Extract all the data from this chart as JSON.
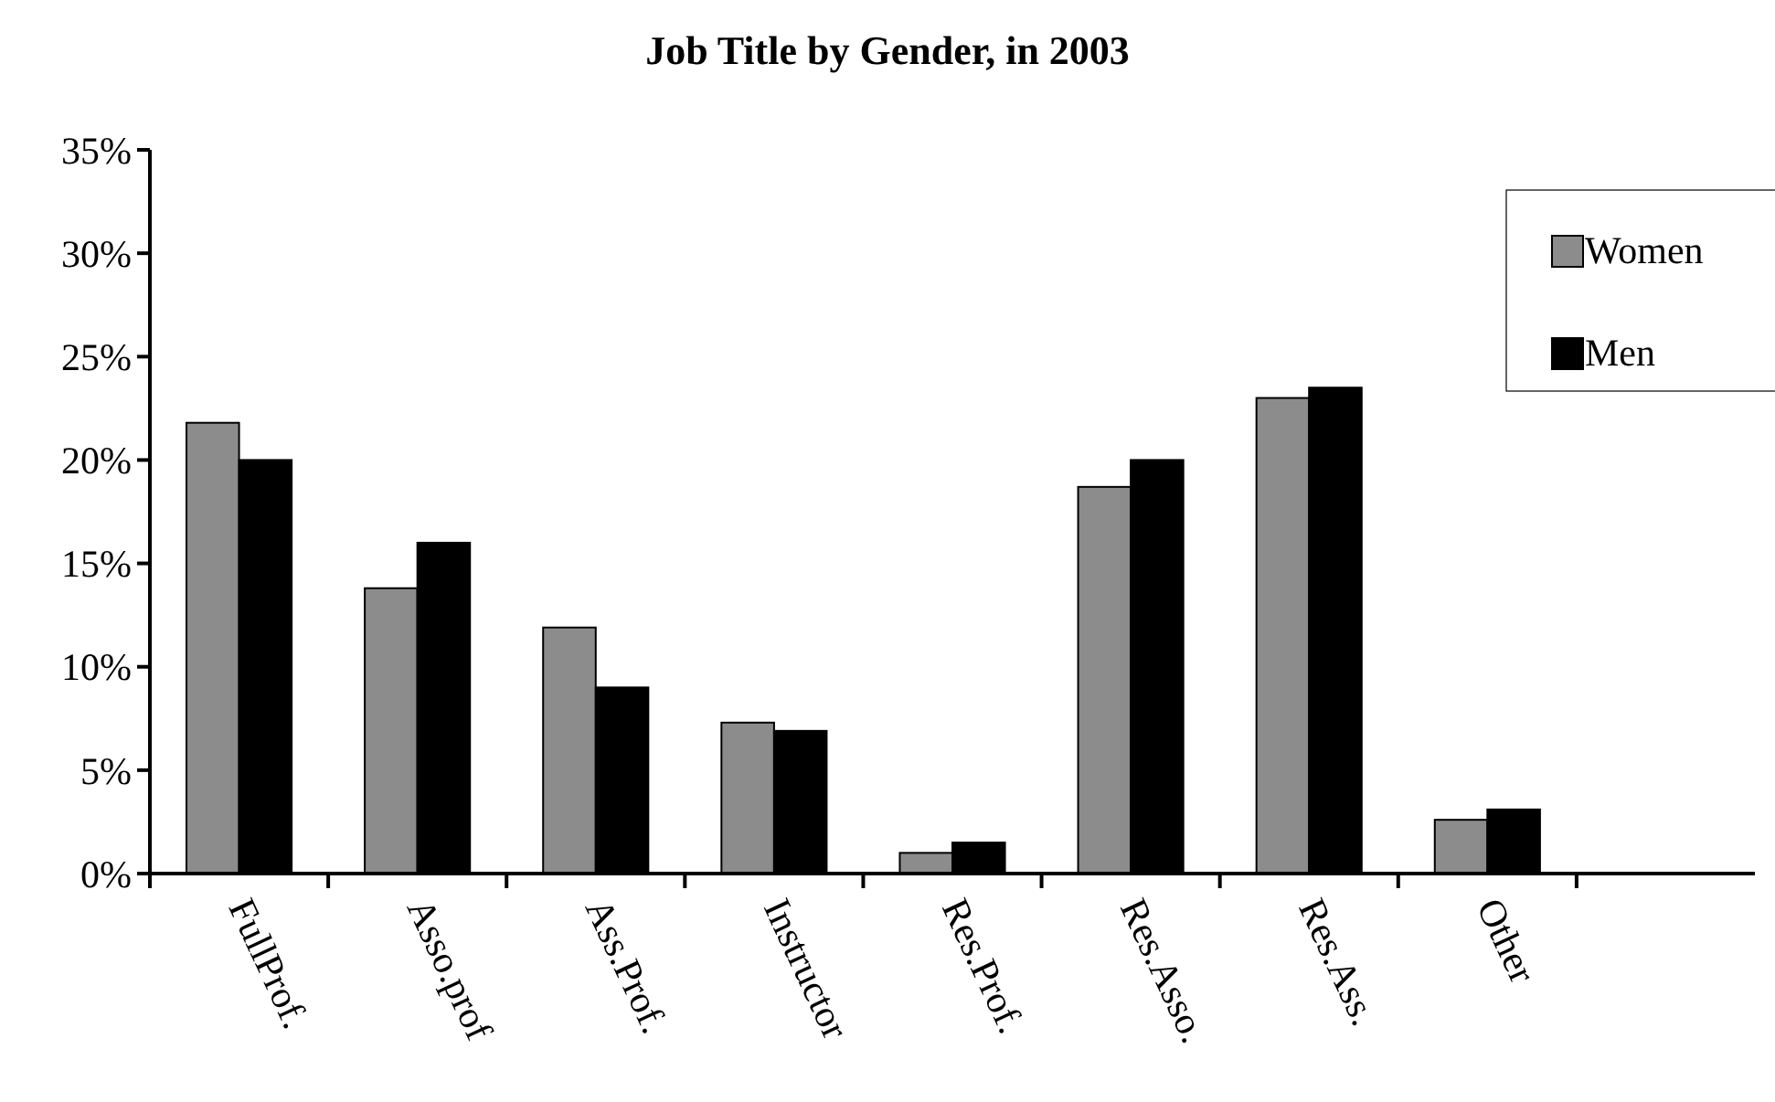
{
  "chart_data": {
    "type": "bar",
    "title": "Job Title by Gender, in 2003",
    "categories": [
      "FullProf.",
      "Asso.prof",
      "Ass.Prof.",
      "Instructor",
      "Res.Prof.",
      "Res.Asso.",
      "Res.Ass.",
      "Other",
      null
    ],
    "series": [
      {
        "name": "Women",
        "color": "#8c8c8c",
        "values": [
          21.8,
          13.8,
          11.9,
          7.3,
          1.0,
          18.7,
          23.0,
          2.6,
          null
        ]
      },
      {
        "name": "Men",
        "color": "#000000",
        "values": [
          20.0,
          16.0,
          9.0,
          6.9,
          1.5,
          20.0,
          23.5,
          3.1,
          null
        ]
      }
    ],
    "ylim": [
      0,
      35
    ],
    "yticks": [
      {
        "value": 0,
        "label": "0%"
      },
      {
        "value": 5,
        "label": "5%"
      },
      {
        "value": 10,
        "label": "10%"
      },
      {
        "value": 15,
        "label": "15%"
      },
      {
        "value": 20,
        "label": "20%"
      },
      {
        "value": 25,
        "label": "25%"
      },
      {
        "value": 30,
        "label": "30%"
      },
      {
        "value": 35,
        "label": "35%"
      }
    ],
    "legend": "top right",
    "grid": false
  }
}
